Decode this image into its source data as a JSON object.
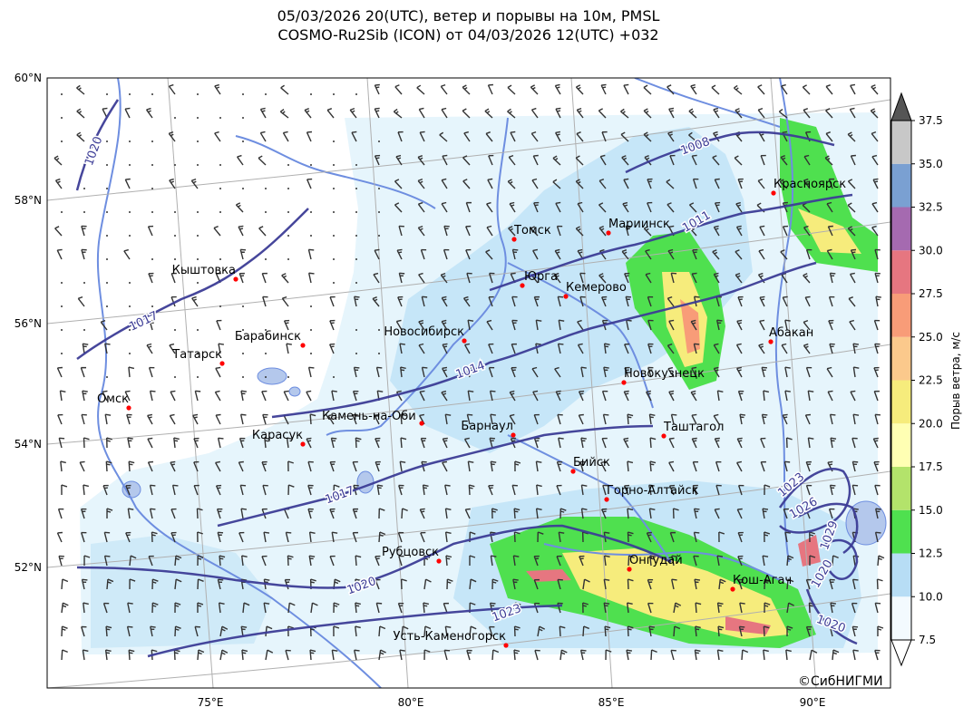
{
  "title": {
    "line1": "05/03/2026 20(UTC), ветер и порывы на 10м, PMSL",
    "line2": "COSMO-Ru2Sib (ICON) от 04/03/2026 12(UTC) +032"
  },
  "axes": {
    "latitude_labels": [
      "60°N",
      "58°N",
      "56°N",
      "54°N",
      "52°N"
    ],
    "longitude_labels": [
      "75°E",
      "80°E",
      "85°E",
      "90°E"
    ]
  },
  "colorbar": {
    "label": "Порыв ветра, м/с",
    "ticks": [
      "7.5",
      "10.0",
      "12.5",
      "15.0",
      "17.5",
      "20.0",
      "22.5",
      "25.0",
      "27.5",
      "30.0",
      "32.5",
      "35.0",
      "37.5"
    ],
    "colors": [
      "#f3fafe",
      "#b7ddf5",
      "#4fe04f",
      "#b3e36b",
      "#ffffb3",
      "#f6ec7c",
      "#fbc98c",
      "#f89c78",
      "#e67680",
      "#a56ab0",
      "#7aa0d2",
      "#c8c8c8"
    ],
    "over_color": "#555555"
  },
  "cities": [
    {
      "name": "Томск"
    },
    {
      "name": "Мариинск"
    },
    {
      "name": "Красноярск"
    },
    {
      "name": "Кыштовка"
    },
    {
      "name": "Юрга"
    },
    {
      "name": "Кемерово"
    },
    {
      "name": "Барабинск"
    },
    {
      "name": "Новосибирск"
    },
    {
      "name": "Абакан"
    },
    {
      "name": "Татарск"
    },
    {
      "name": "Новокузнецк"
    },
    {
      "name": "Омск"
    },
    {
      "name": "Камень-на-Оби"
    },
    {
      "name": "Барнаул"
    },
    {
      "name": "Таштагол"
    },
    {
      "name": "Карасук"
    },
    {
      "name": "Бийск"
    },
    {
      "name": "Горно-Алтайск"
    },
    {
      "name": "Рубцовск"
    },
    {
      "name": "Онгудай"
    },
    {
      "name": "Кош-Агач"
    },
    {
      "name": "Усть-Каменогорск"
    }
  ],
  "isobars": {
    "labels": [
      "1020",
      "1008",
      "1011",
      "1017",
      "1014",
      "1017",
      "1020",
      "1023",
      "1023",
      "1026",
      "1029",
      "1020",
      "1020"
    ],
    "color": "#3c3c96"
  },
  "credit": "©СибНИГМИ",
  "colors": {
    "river": "#6e8ee0",
    "city_marker": "#ff0000",
    "barb": "#333333"
  }
}
